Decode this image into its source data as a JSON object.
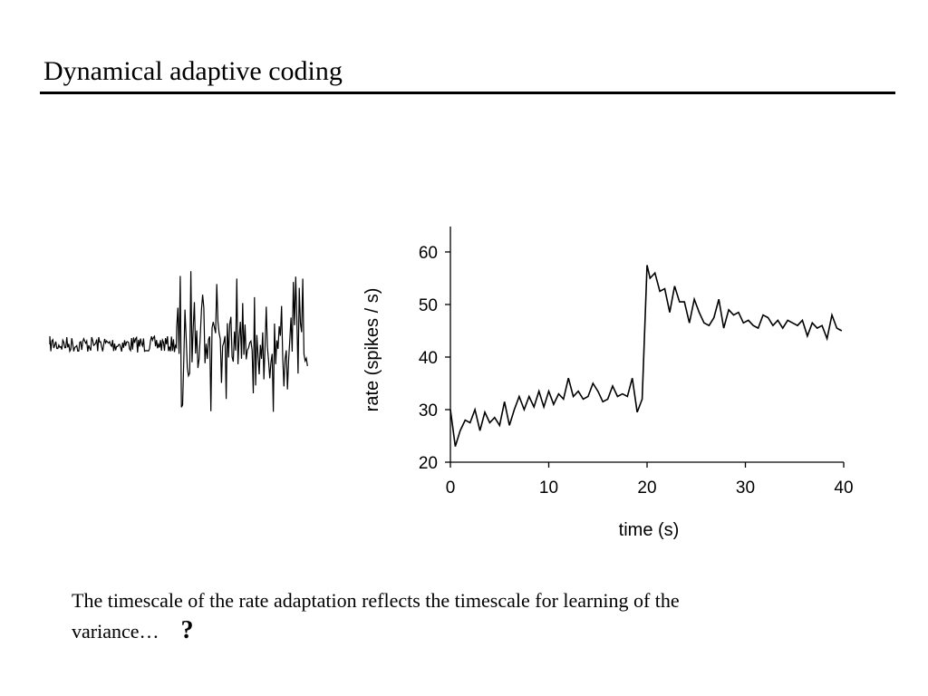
{
  "slide": {
    "title": "Dynamical adaptive coding",
    "caption": "The timescale of the rate adaptation reflects the timescale for learning of the variance…",
    "question_mark": "?"
  },
  "stimulus": {
    "icon": "noise-trace-icon",
    "color": "#000000"
  },
  "chart_data": {
    "type": "line",
    "xlabel": "time (s)",
    "ylabel": "rate (spikes / s)",
    "xlim": [
      0,
      40
    ],
    "ylim": [
      20,
      60
    ],
    "xticks": [
      0,
      10,
      20,
      30,
      40
    ],
    "yticks": [
      20,
      30,
      40,
      50,
      60
    ],
    "grid": false,
    "color": "#000000",
    "series": [
      {
        "x": [
          0,
          0.5,
          1,
          1.5,
          2,
          2.5,
          3,
          3.5,
          4,
          4.5,
          5,
          5.5,
          6,
          6.5,
          7,
          7.5,
          8,
          8.5,
          9,
          9.5,
          10,
          10.5,
          11,
          11.5,
          12,
          12.5,
          13,
          13.5,
          14,
          14.5,
          15,
          15.5,
          16,
          16.5,
          17,
          17.5,
          18,
          18.5,
          19,
          19.5,
          20,
          20.3,
          20.8,
          21.3,
          21.8,
          22.3,
          22.8,
          23.3,
          23.8,
          24.3,
          24.8,
          25.3,
          25.8,
          26.3,
          26.8,
          27.3,
          27.8,
          28.3,
          28.8,
          29.3,
          29.8,
          30.3,
          30.8,
          31.3,
          31.8,
          32.3,
          32.8,
          33.3,
          33.8,
          34.3,
          34.8,
          35.3,
          35.8,
          36.3,
          36.8,
          37.3,
          37.8,
          38.3,
          38.8,
          39.3,
          39.8
        ],
        "y": [
          30,
          23,
          26,
          28,
          27.5,
          30,
          26,
          29.5,
          27.5,
          28.5,
          27,
          31.5,
          27,
          30,
          32.5,
          30,
          32.5,
          30.5,
          33.5,
          30.5,
          33.5,
          31,
          33,
          32,
          36,
          32.5,
          33.5,
          32,
          32.5,
          35,
          33.5,
          31.5,
          32,
          34.5,
          32.5,
          33,
          32.5,
          36,
          29.5,
          32,
          57.5,
          55,
          56,
          52.5,
          53,
          48.5,
          53.5,
          50.5,
          50.5,
          46.5,
          51,
          48.5,
          46.5,
          46,
          47.5,
          51,
          45.5,
          49,
          48,
          48.5,
          46.5,
          47,
          46,
          45.5,
          48,
          47.5,
          46,
          47,
          45.5,
          47,
          46.5,
          46,
          47,
          44,
          46.5,
          45.5,
          46,
          43.5,
          48,
          45.5,
          45
        ]
      }
    ]
  }
}
